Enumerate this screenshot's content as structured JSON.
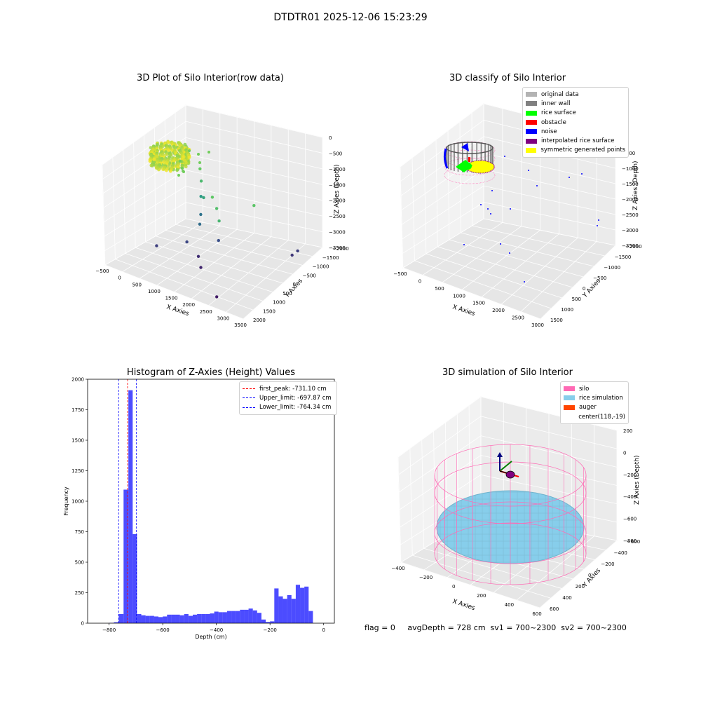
{
  "suptitle": "DTDTR01 2025-12-06 15:23:29",
  "footer": "flag = 0     avgDepth = 728 cm  sv1 = 700~2300  sv2 = 700~2300",
  "chart_data": [
    {
      "type": "scatter",
      "panel": "top-left",
      "title": "3D Plot of Silo Interior(row data)",
      "xlabel": "X Axies",
      "ylabel": "Y Axies",
      "zlabel": "Z Axies (Depth)",
      "xticks": [
        "−500",
        "0",
        "500",
        "1000",
        "1500",
        "2000",
        "2500",
        "3000",
        "3500"
      ],
      "yticks": [
        "−2000",
        "−1500",
        "−1000",
        "−500",
        "0",
        "500",
        "1000",
        "1500",
        "2000"
      ],
      "zticks": [
        "0",
        "−500",
        "−1000",
        "−1500",
        "−2000",
        "−2500",
        "−3000",
        "−3500"
      ],
      "xlim": [
        -600,
        3500
      ],
      "ylim": [
        -2100,
        2100
      ],
      "zlim": [
        -3700,
        0
      ],
      "colormap": "viridis",
      "points": [
        {
          "x": 1500,
          "y": -200,
          "z": -950
        },
        {
          "x": 1800,
          "y": -500,
          "z": -1100
        },
        {
          "x": 2100,
          "y": -900,
          "z": -1250
        },
        {
          "x": 2450,
          "y": 300,
          "z": -1000
        },
        {
          "x": 2900,
          "y": 1500,
          "z": -3100
        },
        {
          "x": 2950,
          "y": 1700,
          "z": -3000
        },
        {
          "x": 900,
          "y": 400,
          "z": -1500
        },
        {
          "x": 700,
          "y": 600,
          "z": -2300
        },
        {
          "x": 900,
          "y": 200,
          "z": -2400
        },
        {
          "x": 1400,
          "y": 300,
          "z": -2800
        },
        {
          "x": 800,
          "y": -300,
          "z": -2900
        },
        {
          "x": 1200,
          "y": -400,
          "z": -3200
        },
        {
          "x": 1500,
          "y": -800,
          "z": -3300
        },
        {
          "x": 300,
          "y": -1000,
          "z": -3000
        },
        {
          "x": 2600,
          "y": -1900,
          "z": -3400
        },
        {
          "x": 600,
          "y": 800,
          "z": -1200
        },
        {
          "x": 450,
          "y": 1000,
          "z": -900
        },
        {
          "x": 650,
          "y": 700,
          "z": -1700
        }
      ]
    },
    {
      "type": "scatter",
      "panel": "top-right",
      "title": "3D classify of Silo Interior",
      "xlabel": "X Axies",
      "ylabel": "Y Axies",
      "zlabel": "Z Axies (Depth)",
      "xticks": [
        "−500",
        "0",
        "500",
        "1000",
        "1500",
        "2000",
        "2500",
        "3000"
      ],
      "yticks": [
        "−2000",
        "−1500",
        "−1000",
        "−500",
        "0",
        "500",
        "1000",
        "1500"
      ],
      "zticks": [
        "0",
        "−500",
        "−1000",
        "−1500",
        "−2000",
        "−2500",
        "−3000",
        "−3500"
      ],
      "legend": [
        {
          "label": "original data",
          "color": "#b3b3b3"
        },
        {
          "label": "inner wall",
          "color": "#808080"
        },
        {
          "label": "rice surface",
          "color": "#00ff00"
        },
        {
          "label": "obstacle",
          "color": "#ff0000"
        },
        {
          "label": "noise",
          "color": "#0000ff"
        },
        {
          "label": "interpolated rice surface",
          "color": "#800080"
        },
        {
          "label": "symmetric generated points",
          "color": "#ffff00"
        }
      ]
    },
    {
      "type": "bar",
      "panel": "bottom-left",
      "title": "Histogram of Z-Axies (Height) Values",
      "xlabel": "Depth (cm)",
      "ylabel": "Frequency",
      "xlim": [
        -880,
        40
      ],
      "ylim": [
        0,
        2000
      ],
      "xticks": [
        -800,
        -600,
        -400,
        -200,
        0
      ],
      "yticks": [
        0,
        250,
        500,
        750,
        1000,
        1250,
        1500,
        1750,
        2000
      ],
      "bar_color": "#0000ff",
      "bins": [
        {
          "x0": -800,
          "x1": -782,
          "value": 3
        },
        {
          "x0": -782,
          "x1": -764,
          "value": 8
        },
        {
          "x0": -764,
          "x1": -746,
          "value": 75
        },
        {
          "x0": -746,
          "x1": -728,
          "value": 1095
        },
        {
          "x0": -728,
          "x1": -712,
          "value": 1910
        },
        {
          "x0": -712,
          "x1": -696,
          "value": 730
        },
        {
          "x0": -696,
          "x1": -680,
          "value": 75
        },
        {
          "x0": -680,
          "x1": -664,
          "value": 65
        },
        {
          "x0": -664,
          "x1": -648,
          "value": 60
        },
        {
          "x0": -648,
          "x1": -632,
          "value": 60
        },
        {
          "x0": -632,
          "x1": -616,
          "value": 55
        },
        {
          "x0": -616,
          "x1": -600,
          "value": 50
        },
        {
          "x0": -600,
          "x1": -584,
          "value": 55
        },
        {
          "x0": -584,
          "x1": -568,
          "value": 70
        },
        {
          "x0": -568,
          "x1": -552,
          "value": 70
        },
        {
          "x0": -552,
          "x1": -536,
          "value": 70
        },
        {
          "x0": -536,
          "x1": -520,
          "value": 65
        },
        {
          "x0": -520,
          "x1": -504,
          "value": 75
        },
        {
          "x0": -504,
          "x1": -488,
          "value": 60
        },
        {
          "x0": -488,
          "x1": -472,
          "value": 70
        },
        {
          "x0": -472,
          "x1": -456,
          "value": 75
        },
        {
          "x0": -456,
          "x1": -440,
          "value": 75
        },
        {
          "x0": -440,
          "x1": -424,
          "value": 75
        },
        {
          "x0": -424,
          "x1": -408,
          "value": 80
        },
        {
          "x0": -408,
          "x1": -392,
          "value": 95
        },
        {
          "x0": -392,
          "x1": -376,
          "value": 90
        },
        {
          "x0": -376,
          "x1": -360,
          "value": 90
        },
        {
          "x0": -360,
          "x1": -344,
          "value": 100
        },
        {
          "x0": -344,
          "x1": -328,
          "value": 100
        },
        {
          "x0": -328,
          "x1": -312,
          "value": 100
        },
        {
          "x0": -312,
          "x1": -296,
          "value": 110
        },
        {
          "x0": -296,
          "x1": -280,
          "value": 110
        },
        {
          "x0": -280,
          "x1": -264,
          "value": 120
        },
        {
          "x0": -264,
          "x1": -248,
          "value": 105
        },
        {
          "x0": -248,
          "x1": -232,
          "value": 85
        },
        {
          "x0": -232,
          "x1": -216,
          "value": 30
        },
        {
          "x0": -216,
          "x1": -200,
          "value": 10
        },
        {
          "x0": -200,
          "x1": -184,
          "value": 15
        },
        {
          "x0": -184,
          "x1": -168,
          "value": 285
        },
        {
          "x0": -168,
          "x1": -152,
          "value": 220
        },
        {
          "x0": -152,
          "x1": -136,
          "value": 200
        },
        {
          "x0": -136,
          "x1": -120,
          "value": 230
        },
        {
          "x0": -120,
          "x1": -104,
          "value": 200
        },
        {
          "x0": -104,
          "x1": -88,
          "value": 315
        },
        {
          "x0": -88,
          "x1": -72,
          "value": 290
        },
        {
          "x0": -72,
          "x1": -56,
          "value": 300
        },
        {
          "x0": -56,
          "x1": -40,
          "value": 100
        }
      ],
      "vlines": [
        {
          "label": "first_peak: -731.10 cm",
          "x": -731.1,
          "color": "#ff0000"
        },
        {
          "label": "Upper_limit: -697.87 cm",
          "x": -697.87,
          "color": "#0000ff"
        },
        {
          "label": "Lower_limit: -764.34 cm",
          "x": -764.34,
          "color": "#0000ff"
        }
      ]
    },
    {
      "type": "scatter",
      "panel": "bottom-right",
      "title": "3D simulation of Silo Interior",
      "xlabel": "X Axies",
      "ylabel": "Y Axies",
      "zlabel": "Z Axies (Depth)",
      "xticks": [
        "−400",
        "−200",
        "0",
        "200",
        "400",
        "600"
      ],
      "yticks": [
        "−600",
        "−400",
        "−200",
        "0",
        "200",
        "400",
        "600"
      ],
      "zticks": [
        "200",
        "0",
        "−200",
        "−400",
        "−600",
        "−800"
      ],
      "legend": [
        {
          "label": "silo",
          "color": "#ff69b4"
        },
        {
          "label": "rice simulation",
          "color": "#87ceeb"
        },
        {
          "label": "auger",
          "color": "#ff4500"
        },
        {
          "label": "center(118,-19)",
          "color": ""
        }
      ]
    }
  ]
}
